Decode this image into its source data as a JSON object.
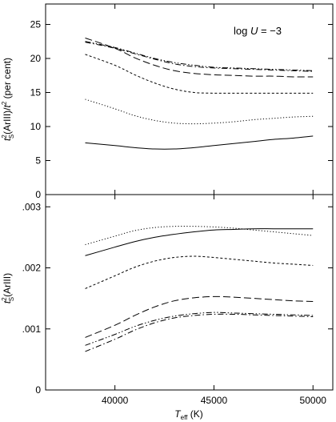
{
  "chart_data": [
    {
      "type": "line",
      "panel": "top",
      "ylabel_parts": {
        "t": "t",
        "sub": "S",
        "sup": "2",
        "mid": "(ArIII)/",
        "t2": "t",
        "sup2": "2",
        "tail": " (per cent)"
      },
      "annotation_parts": {
        "pre": "log ",
        "var": "U",
        "post": " = −3"
      },
      "xlim": [
        36500,
        51000
      ],
      "ylim": [
        0,
        28
      ],
      "yticks": [
        0,
        5,
        10,
        15,
        20,
        25
      ],
      "ytick_labels": [
        "0",
        "5",
        "10",
        "15",
        "20",
        "25"
      ],
      "x": [
        38500,
        40000,
        41000,
        42000,
        43000,
        44000,
        45000,
        46000,
        47000,
        48000,
        49000,
        50000
      ],
      "series": [
        {
          "style": "solid",
          "values": [
            7.6,
            7.2,
            6.9,
            6.7,
            6.7,
            6.9,
            7.2,
            7.5,
            7.8,
            8.1,
            8.3,
            8.6
          ]
        },
        {
          "style": "dotted",
          "values": [
            14.0,
            12.6,
            11.6,
            10.9,
            10.5,
            10.4,
            10.5,
            10.7,
            11.0,
            11.2,
            11.4,
            11.5
          ]
        },
        {
          "style": "short-dash",
          "values": [
            20.6,
            19.0,
            17.6,
            16.4,
            15.5,
            15.0,
            14.9,
            14.9,
            14.9,
            14.9,
            14.9,
            14.9
          ]
        },
        {
          "style": "long-dash",
          "values": [
            23.0,
            21.5,
            20.1,
            19.0,
            18.2,
            17.8,
            17.6,
            17.5,
            17.4,
            17.4,
            17.3,
            17.3
          ]
        },
        {
          "style": "dash-dot",
          "values": [
            22.4,
            21.5,
            20.7,
            19.9,
            19.2,
            18.8,
            18.6,
            18.5,
            18.4,
            18.3,
            18.2,
            18.1
          ]
        },
        {
          "style": "dash-dot-dot",
          "values": [
            22.5,
            21.6,
            20.8,
            20.0,
            19.4,
            19.0,
            18.7,
            18.6,
            18.5,
            18.4,
            18.3,
            18.2
          ]
        }
      ]
    },
    {
      "type": "line",
      "panel": "bottom",
      "ylabel_parts": {
        "t": "t",
        "sub": "S",
        "sup": "2",
        "tail": "(ArIII)"
      },
      "xlabel_parts": {
        "t": "T",
        "sub": "eff",
        "tail": " (K)"
      },
      "xlim": [
        36500,
        51000
      ],
      "ylim": [
        0,
        0.0032
      ],
      "xticks": [
        40000,
        45000,
        50000
      ],
      "xtick_labels": [
        "40000",
        "45000",
        "50000"
      ],
      "yticks": [
        0,
        0.001,
        0.002,
        0.003
      ],
      "ytick_labels": [
        "0",
        ".001",
        ".002",
        ".003"
      ],
      "x": [
        38500,
        40000,
        41000,
        42000,
        43000,
        44000,
        45000,
        46000,
        47000,
        48000,
        49000,
        50000
      ],
      "series": [
        {
          "style": "solid",
          "values": [
            0.0022,
            0.00234,
            0.00243,
            0.0025,
            0.00255,
            0.00259,
            0.00262,
            0.00263,
            0.00264,
            0.00264,
            0.00264,
            0.00264
          ]
        },
        {
          "style": "dotted",
          "values": [
            0.00238,
            0.00252,
            0.00261,
            0.00266,
            0.00268,
            0.00268,
            0.00267,
            0.00265,
            0.00262,
            0.00259,
            0.00256,
            0.00253
          ]
        },
        {
          "style": "short-dash",
          "values": [
            0.00166,
            0.00187,
            0.00201,
            0.00211,
            0.00217,
            0.00219,
            0.00217,
            0.00214,
            0.00211,
            0.00208,
            0.00206,
            0.00204
          ]
        },
        {
          "style": "long-dash",
          "values": [
            0.00086,
            0.00106,
            0.00122,
            0.00136,
            0.00146,
            0.00151,
            0.00153,
            0.00152,
            0.0015,
            0.00148,
            0.00146,
            0.00145
          ]
        },
        {
          "style": "dash-dot",
          "values": [
            0.00063,
            0.00083,
            0.00098,
            0.0011,
            0.00118,
            0.00122,
            0.00124,
            0.00124,
            0.00123,
            0.00122,
            0.00121,
            0.0012
          ]
        },
        {
          "style": "dash-dot-dot",
          "values": [
            0.00073,
            0.00091,
            0.00104,
            0.00114,
            0.00121,
            0.00125,
            0.00127,
            0.00126,
            0.00125,
            0.00124,
            0.00123,
            0.00122
          ]
        }
      ]
    }
  ]
}
